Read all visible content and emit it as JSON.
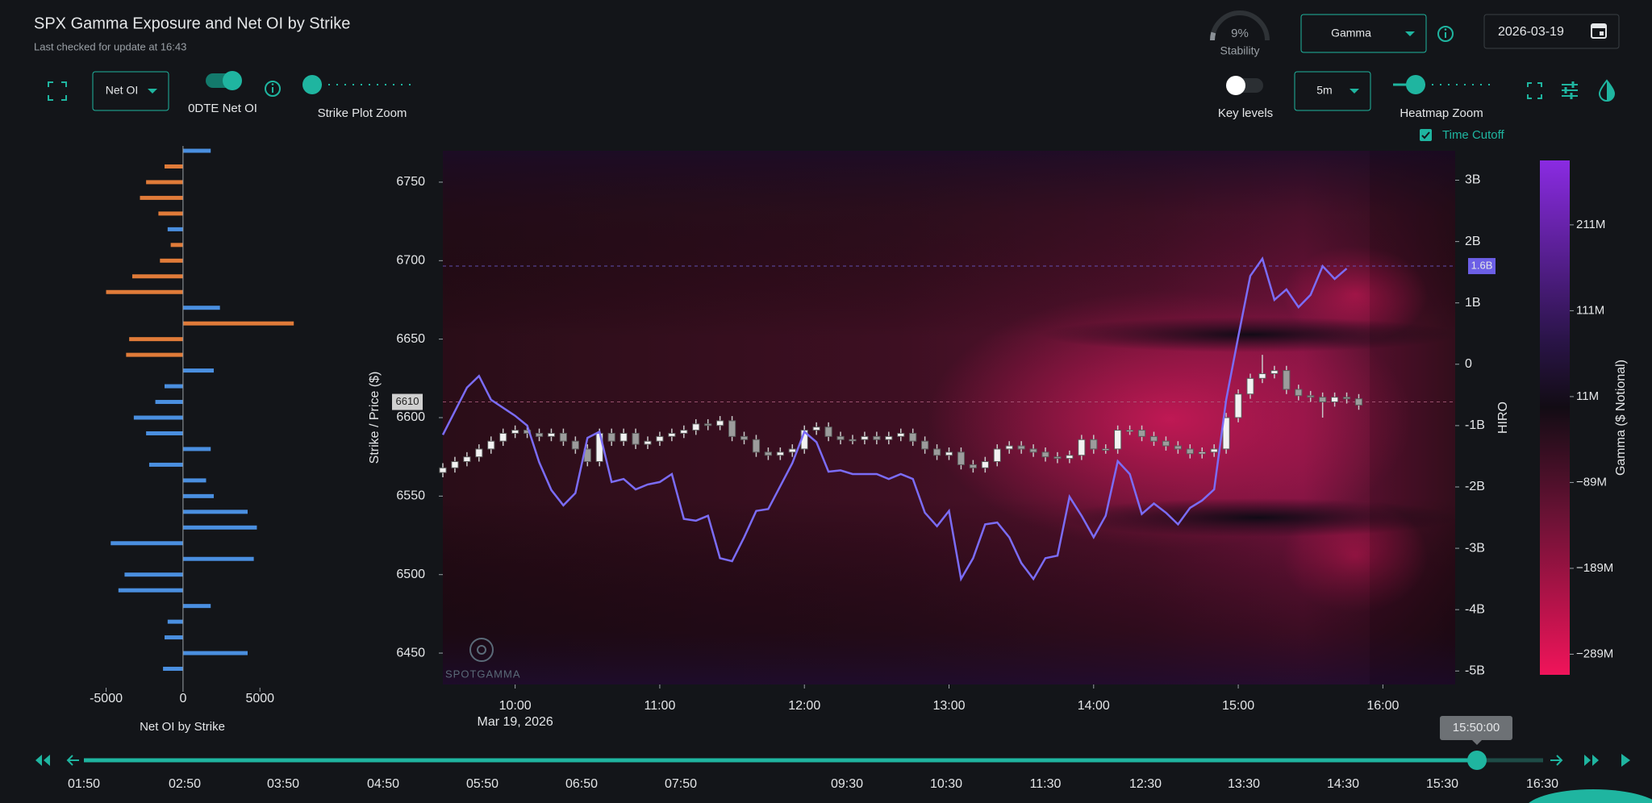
{
  "header": {
    "title": "SPX Gamma Exposure and Net OI by Strike",
    "subtitle": "Last checked for update at 16:43"
  },
  "controls": {
    "stability": {
      "value": 9,
      "value_label": "9%",
      "label": "Stability"
    },
    "mode": "Gamma",
    "date": "2026-03-19",
    "oi_mode": "Net OI",
    "toggle_0dte": "0DTE Net OI",
    "strike_zoom": "Strike Plot Zoom",
    "key_levels": "Key levels",
    "interval": "5m",
    "heatmap_zoom": "Heatmap Zoom",
    "time_cutoff": "Time Cutoff"
  },
  "chart_data": [
    {
      "type": "barh",
      "title": "Net OI by Strike",
      "y": [
        6770,
        6760,
        6750,
        6740,
        6730,
        6720,
        6710,
        6700,
        6690,
        6680,
        6670,
        6660,
        6650,
        6640,
        6630,
        6620,
        6610,
        6600,
        6590,
        6580,
        6570,
        6560,
        6550,
        6540,
        6530,
        6520,
        6510,
        6500,
        6490,
        6480,
        6470,
        6460,
        6450,
        6440
      ],
      "values": [
        1800,
        -1200,
        -2400,
        -2800,
        -1600,
        -1000,
        -800,
        -1500,
        -3300,
        -5000,
        2400,
        7200,
        -3500,
        -3700,
        2000,
        -1200,
        -1800,
        -3200,
        -2400,
        1800,
        -2200,
        1500,
        2000,
        4200,
        4800,
        -4700,
        4600,
        -3800,
        -4200,
        1800,
        -1000,
        -1200,
        4200,
        -1300
      ],
      "colors": [
        "#4a8fe0",
        "#e07b39",
        "#e07b39",
        "#e07b39",
        "#e07b39",
        "#4a8fe0",
        "#e07b39",
        "#e07b39",
        "#e07b39",
        "#e07b39",
        "#4a8fe0",
        "#e07b39",
        "#e07b39",
        "#e07b39",
        "#4a8fe0",
        "#4a8fe0",
        "#4a8fe0",
        "#4a8fe0",
        "#4a8fe0",
        "#4a8fe0",
        "#4a8fe0",
        "#4a8fe0",
        "#4a8fe0",
        "#4a8fe0",
        "#4a8fe0",
        "#4a8fe0",
        "#4a8fe0",
        "#4a8fe0",
        "#4a8fe0",
        "#4a8fe0",
        "#4a8fe0",
        "#4a8fe0",
        "#4a8fe0",
        "#4a8fe0"
      ],
      "xlim": [
        -5500,
        8500
      ],
      "xticks": [
        -5000,
        0,
        5000
      ],
      "ylim": [
        6430,
        6770
      ]
    },
    {
      "type": "candlestick",
      "ylabel": "Strike / Price ($)",
      "y2label": "HIRO",
      "x_sublabel": "Mar 19, 2026",
      "xlim": [
        570,
        990
      ],
      "xticks": [
        {
          "value": 600,
          "label": "10:00"
        },
        {
          "value": 660,
          "label": "11:00"
        },
        {
          "value": 720,
          "label": "12:00"
        },
        {
          "value": 780,
          "label": "13:00"
        },
        {
          "value": 840,
          "label": "14:00"
        },
        {
          "value": 900,
          "label": "15:00"
        },
        {
          "value": 960,
          "label": "16:00"
        }
      ],
      "ylim": [
        6430,
        6770
      ],
      "yticks": [
        6450,
        6500,
        6550,
        6600,
        6650,
        6700,
        6750
      ],
      "y2lim": [
        -5.22,
        3.48
      ],
      "y2ticks": [
        {
          "value": 3,
          "label": "3B"
        },
        {
          "value": 2,
          "label": "2B"
        },
        {
          "value": 1,
          "label": "1B"
        },
        0,
        {
          "value": -1,
          "label": "-1B"
        },
        {
          "value": -2,
          "label": "-2B"
        },
        {
          "value": -3,
          "label": "-3B"
        },
        {
          "value": -4,
          "label": "-4B"
        },
        {
          "value": -5,
          "label": "-5B"
        }
      ],
      "up_color": "#f2f2f2",
      "down_color": "#9c9c9c",
      "x": [
        570,
        575,
        580,
        585,
        590,
        595,
        600,
        605,
        610,
        615,
        620,
        625,
        630,
        635,
        640,
        645,
        650,
        655,
        660,
        665,
        670,
        675,
        680,
        685,
        690,
        695,
        700,
        705,
        710,
        715,
        720,
        725,
        730,
        735,
        740,
        745,
        750,
        755,
        760,
        765,
        770,
        775,
        780,
        785,
        790,
        795,
        800,
        805,
        810,
        815,
        820,
        825,
        830,
        835,
        840,
        845,
        850,
        855,
        860,
        865,
        870,
        875,
        880,
        885,
        890,
        895,
        900,
        905,
        910,
        915,
        920,
        925,
        930,
        935,
        940,
        945,
        950
      ],
      "open": [
        6565,
        6568,
        6572,
        6575,
        6580,
        6585,
        6590,
        6592,
        6590,
        6588,
        6590,
        6585,
        6580,
        6572,
        6590,
        6585,
        6590,
        6583,
        6585,
        6588,
        6590,
        6592,
        6596,
        6595,
        6598,
        6588,
        6586,
        6578,
        6576,
        6578,
        6580,
        6592,
        6594,
        6588,
        6586,
        6586,
        6588,
        6586,
        6588,
        6590,
        6585,
        6580,
        6576,
        6578,
        6570,
        6568,
        6572,
        6580,
        6582,
        6580,
        6578,
        6575,
        6574,
        6576,
        6586,
        6580,
        6580,
        6592,
        6592,
        6588,
        6585,
        6582,
        6580,
        6577,
        6578,
        6580,
        6600,
        6615,
        6625,
        6628,
        6630,
        6618,
        6614,
        6613,
        6610,
        6613,
        6612
      ],
      "high": [
        6571,
        6575,
        6578,
        6583,
        6588,
        6593,
        6595,
        6595,
        6593,
        6593,
        6593,
        6588,
        6583,
        6593,
        6593,
        6593,
        6593,
        6588,
        6591,
        6593,
        6595,
        6599,
        6599,
        6601,
        6601,
        6591,
        6589,
        6581,
        6581,
        6583,
        6595,
        6597,
        6597,
        6591,
        6589,
        6591,
        6591,
        6591,
        6593,
        6593,
        6588,
        6583,
        6581,
        6581,
        6573,
        6575,
        6583,
        6585,
        6585,
        6583,
        6581,
        6578,
        6579,
        6589,
        6589,
        6583,
        6595,
        6595,
        6595,
        6591,
        6588,
        6585,
        6583,
        6581,
        6583,
        6603,
        6618,
        6628,
        6640,
        6633,
        6633,
        6621,
        6617,
        6616,
        6616,
        6616,
        6615
      ],
      "low": [
        6562,
        6565,
        6569,
        6572,
        6577,
        6582,
        6587,
        6587,
        6585,
        6585,
        6582,
        6577,
        6569,
        6569,
        6582,
        6582,
        6580,
        6580,
        6582,
        6585,
        6587,
        6589,
        6592,
        6592,
        6585,
        6583,
        6575,
        6573,
        6573,
        6575,
        6577,
        6589,
        6585,
        6583,
        6583,
        6583,
        6583,
        6583,
        6585,
        6582,
        6577,
        6573,
        6573,
        6567,
        6565,
        6565,
        6569,
        6577,
        6577,
        6575,
        6572,
        6571,
        6571,
        6573,
        6577,
        6577,
        6577,
        6589,
        6585,
        6582,
        6579,
        6577,
        6574,
        6574,
        6575,
        6577,
        6597,
        6612,
        6622,
        6625,
        6615,
        6611,
        6610,
        6600,
        6607,
        6609,
        6605
      ],
      "close": [
        6568,
        6572,
        6575,
        6580,
        6585,
        6590,
        6592,
        6590,
        6588,
        6590,
        6585,
        6580,
        6572,
        6590,
        6585,
        6590,
        6583,
        6585,
        6588,
        6590,
        6592,
        6596,
        6595,
        6598,
        6588,
        6586,
        6578,
        6576,
        6578,
        6580,
        6592,
        6594,
        6588,
        6586,
        6586,
        6588,
        6586,
        6588,
        6590,
        6585,
        6580,
        6576,
        6578,
        6570,
        6568,
        6572,
        6580,
        6582,
        6580,
        6578,
        6575,
        6574,
        6576,
        6586,
        6580,
        6580,
        6592,
        6592,
        6588,
        6585,
        6582,
        6580,
        6577,
        6578,
        6580,
        6600,
        6615,
        6625,
        6628,
        6630,
        6618,
        6614,
        6613,
        6610,
        6613,
        6612,
        6608
      ],
      "line": {
        "axis": "y2",
        "color": "#7b6cf6",
        "x": [
          570,
          580,
          585,
          590,
          600,
          605,
          610,
          615,
          620,
          625,
          630,
          635,
          640,
          645,
          650,
          655,
          660,
          665,
          670,
          675,
          680,
          685,
          690,
          695,
          700,
          705,
          715,
          720,
          725,
          730,
          735,
          740,
          750,
          755,
          760,
          765,
          770,
          775,
          780,
          785,
          790,
          795,
          800,
          805,
          810,
          815,
          820,
          825,
          830,
          835,
          840,
          845,
          850,
          855,
          860,
          865,
          870,
          875,
          880,
          885,
          890,
          895,
          900,
          905,
          910,
          915,
          920,
          925,
          930,
          935,
          940,
          945
        ],
        "values": [
          -1.15,
          -0.38,
          -0.19,
          -0.58,
          -0.84,
          -1.0,
          -1.6,
          -2.05,
          -2.3,
          -2.1,
          -1.2,
          -1.1,
          -1.92,
          -1.87,
          -2.04,
          -1.96,
          -1.92,
          -1.79,
          -2.52,
          -2.55,
          -2.47,
          -3.16,
          -3.21,
          -2.82,
          -2.39,
          -2.36,
          -1.61,
          -1.1,
          -1.27,
          -1.75,
          -1.73,
          -1.79,
          -1.79,
          -1.87,
          -1.79,
          -1.87,
          -2.42,
          -2.64,
          -2.39,
          -3.5,
          -3.16,
          -2.61,
          -2.58,
          -2.82,
          -3.24,
          -3.5,
          -3.16,
          -3.12,
          -2.16,
          -2.47,
          -2.82,
          -2.47,
          -1.58,
          -1.79,
          -2.44,
          -2.27,
          -2.42,
          -2.61,
          -2.34,
          -2.22,
          -2.04,
          -0.58,
          0.45,
          1.44,
          1.72,
          1.05,
          1.22,
          0.93,
          1.13,
          1.6,
          1.39,
          1.56
        ]
      },
      "annotations": [
        {
          "axis": "y",
          "value": 6610,
          "label": "6610"
        },
        {
          "axis": "y2",
          "value": 1.6,
          "label": "1.6B"
        }
      ],
      "colorbar": {
        "label": "Gamma ($ Notional)",
        "lim": [
          -313,
          286
        ],
        "ticks": [
          {
            "value": 211,
            "label": "211M"
          },
          {
            "value": 111,
            "label": "111M"
          },
          {
            "value": 11,
            "label": "11M"
          },
          {
            "value": -89,
            "label": "−89M"
          },
          {
            "value": -189,
            "label": "−189M"
          },
          {
            "value": -289,
            "label": "−289M"
          }
        ]
      }
    }
  ],
  "timeline": {
    "current": "15:50:00",
    "labels": [
      "01:50",
      "02:50",
      "03:50",
      "04:50",
      "05:50",
      "06:50",
      "07:50",
      "09:30",
      "10:30",
      "11:30",
      "12:30",
      "13:30",
      "14:30",
      "15:30",
      "16:30"
    ]
  },
  "watermark": "SPOTGAMMA"
}
